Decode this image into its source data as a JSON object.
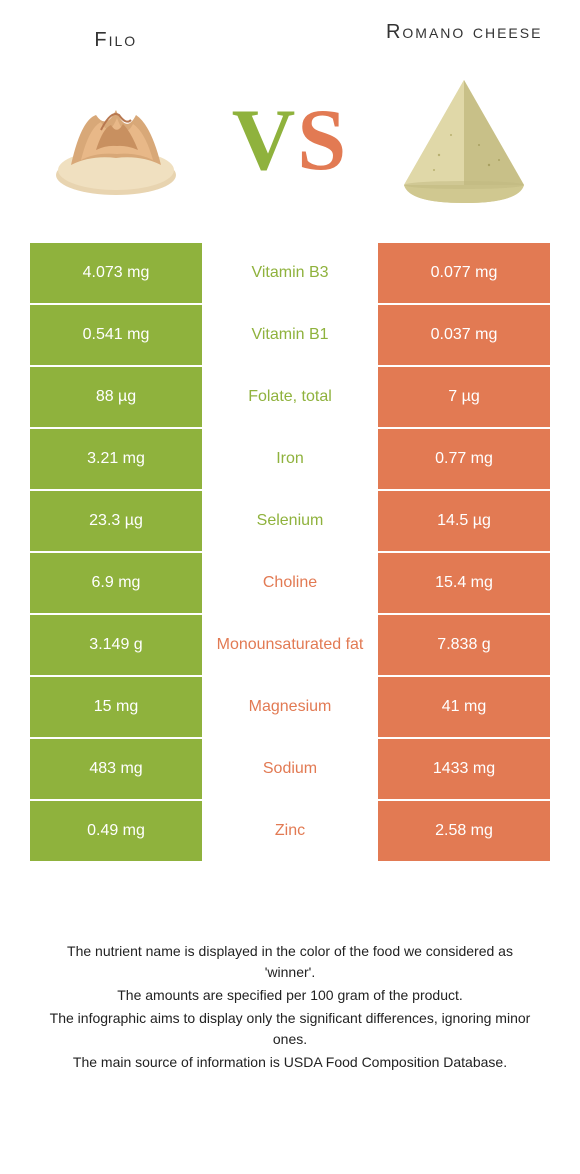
{
  "colors": {
    "green": "#8fb23d",
    "orange": "#e27a53",
    "text": "#333333",
    "white": "#ffffff"
  },
  "fonts": {
    "title_size": 20,
    "cell_size": 16,
    "vs_size": 88,
    "footer_size": 14
  },
  "header": {
    "left_title": "Filo",
    "right_title": "Romano cheese"
  },
  "vs": {
    "v": "V",
    "s": "S"
  },
  "rows": [
    {
      "left": "4.073 mg",
      "label": "Vitamin B3",
      "right": "0.077 mg",
      "winner": "left"
    },
    {
      "left": "0.541 mg",
      "label": "Vitamin B1",
      "right": "0.037 mg",
      "winner": "left"
    },
    {
      "left": "88 µg",
      "label": "Folate, total",
      "right": "7 µg",
      "winner": "left"
    },
    {
      "left": "3.21 mg",
      "label": "Iron",
      "right": "0.77 mg",
      "winner": "left"
    },
    {
      "left": "23.3 µg",
      "label": "Selenium",
      "right": "14.5 µg",
      "winner": "left"
    },
    {
      "left": "6.9 mg",
      "label": "Choline",
      "right": "15.4 mg",
      "winner": "right"
    },
    {
      "left": "3.149 g",
      "label": "Monounsaturated fat",
      "right": "7.838 g",
      "winner": "right"
    },
    {
      "left": "15 mg",
      "label": "Magnesium",
      "right": "41 mg",
      "winner": "right"
    },
    {
      "left": "483 mg",
      "label": "Sodium",
      "right": "1433 mg",
      "winner": "right"
    },
    {
      "left": "0.49 mg",
      "label": "Zinc",
      "right": "2.58 mg",
      "winner": "right"
    }
  ],
  "footer": {
    "line1": "The nutrient name is displayed in the color of the food we considered as 'winner'.",
    "line2": "The amounts are specified per 100 gram of the product.",
    "line3": "The infographic aims to display only the significant differences, ignoring minor ones.",
    "line4": "The main source of information is USDA Food Composition Database."
  }
}
